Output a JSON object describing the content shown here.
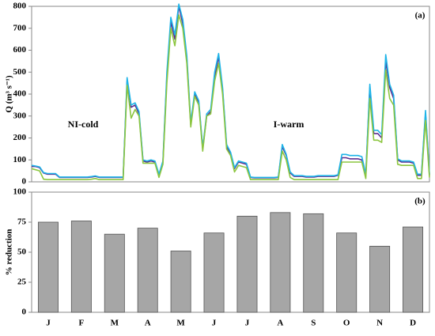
{
  "chart_data": [
    {
      "type": "line",
      "ylabel": "Q (m³ s⁻¹)",
      "annotations": [
        "(a)",
        "NI-cold",
        "I-warm"
      ],
      "ylim": [
        0,
        800
      ],
      "yticks": [
        0,
        100,
        200,
        300,
        400,
        500,
        600,
        700,
        800
      ],
      "series": [
        {
          "color": "#5b2c8f",
          "values": [
            70,
            70,
            65,
            40,
            35,
            35,
            35,
            20,
            20,
            20,
            20,
            20,
            20,
            20,
            20,
            22,
            25,
            20,
            20,
            20,
            20,
            20,
            20,
            20,
            460,
            340,
            350,
            310,
            95,
            90,
            95,
            90,
            30,
            90,
            480,
            730,
            650,
            800,
            720,
            560,
            260,
            400,
            360,
            150,
            300,
            320,
            480,
            570,
            420,
            160,
            130,
            60,
            90,
            85,
            80,
            20,
            18,
            18,
            18,
            18,
            18,
            18,
            20,
            160,
            120,
            40,
            25,
            25,
            25,
            22,
            22,
            22,
            25,
            25,
            25,
            25,
            25,
            30,
            110,
            110,
            105,
            105,
            105,
            100,
            30,
            430,
            220,
            220,
            200,
            550,
            430,
            380,
            100,
            90,
            90,
            90,
            85,
            30,
            30,
            310,
            30
          ]
        },
        {
          "color": "#1eb4e8",
          "values": [
            75,
            72,
            68,
            42,
            38,
            38,
            38,
            22,
            22,
            22,
            22,
            22,
            22,
            22,
            22,
            24,
            27,
            22,
            22,
            22,
            22,
            22,
            22,
            22,
            475,
            350,
            360,
            320,
            100,
            95,
            100,
            95,
            35,
            95,
            500,
            750,
            670,
            810,
            740,
            575,
            270,
            410,
            370,
            155,
            310,
            330,
            500,
            585,
            430,
            170,
            135,
            65,
            95,
            90,
            85,
            22,
            20,
            20,
            20,
            20,
            20,
            20,
            22,
            170,
            125,
            45,
            28,
            28,
            28,
            25,
            25,
            25,
            28,
            28,
            28,
            28,
            28,
            32,
            125,
            125,
            120,
            120,
            120,
            115,
            35,
            445,
            235,
            235,
            215,
            580,
            445,
            395,
            105,
            95,
            95,
            95,
            90,
            35,
            35,
            325,
            35
          ]
        },
        {
          "color": "#8cc63f",
          "values": [
            60,
            55,
            50,
            12,
            10,
            10,
            10,
            10,
            10,
            10,
            10,
            10,
            10,
            10,
            10,
            12,
            15,
            10,
            10,
            10,
            10,
            10,
            10,
            10,
            440,
            290,
            330,
            300,
            85,
            85,
            85,
            85,
            20,
            80,
            450,
            700,
            620,
            760,
            700,
            540,
            250,
            390,
            350,
            140,
            300,
            310,
            460,
            540,
            400,
            150,
            120,
            45,
            75,
            70,
            65,
            10,
            10,
            10,
            10,
            10,
            10,
            10,
            10,
            140,
            100,
            20,
            10,
            10,
            10,
            10,
            10,
            10,
            10,
            10,
            10,
            10,
            10,
            10,
            90,
            90,
            90,
            90,
            90,
            90,
            15,
            380,
            190,
            190,
            180,
            510,
            380,
            350,
            80,
            75,
            75,
            75,
            75,
            15,
            15,
            280,
            20
          ]
        }
      ]
    },
    {
      "type": "bar",
      "ylabel": "% reduction",
      "annotations": [
        "(b)"
      ],
      "categories": [
        "J",
        "F",
        "M",
        "A",
        "M",
        "J",
        "J",
        "A",
        "S",
        "O",
        "N",
        "D"
      ],
      "values": [
        75,
        76,
        65,
        70,
        51,
        66,
        80,
        83,
        82,
        66,
        55,
        71
      ],
      "color": "#a6a6a6",
      "ylim": [
        0,
        100
      ],
      "yticks": [
        0,
        25,
        50,
        75,
        100
      ]
    }
  ]
}
